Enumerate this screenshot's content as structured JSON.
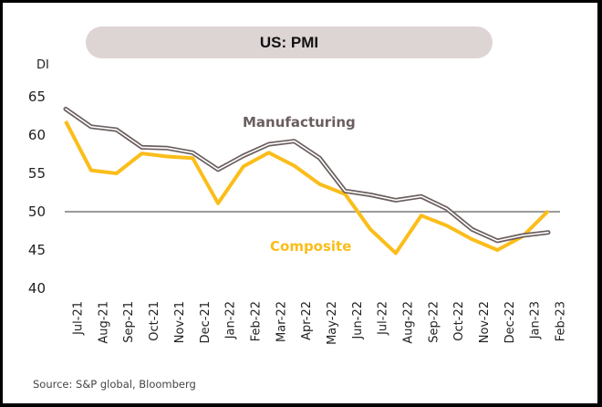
{
  "chart_data": {
    "type": "line",
    "title": "US: PMI",
    "xlabel": "",
    "ylabel": "DI",
    "ylim": [
      40,
      65
    ],
    "yticks": [
      40,
      45,
      50,
      55,
      60,
      65
    ],
    "reference_line": 50,
    "categories": [
      "Jul-21",
      "Aug-21",
      "Sep-21",
      "Oct-21",
      "Nov-21",
      "Dec-21",
      "Jan-22",
      "Feb-22",
      "Mar-22",
      "Apr-22",
      "May-22",
      "Jun-22",
      "Jul-22",
      "Aug-22",
      "Sep-22",
      "Oct-22",
      "Nov-22",
      "Dec-22",
      "Jan-23",
      "Feb-23"
    ],
    "series": [
      {
        "name": "Manufacturing",
        "color": "#6b5e5e",
        "style": "double-outline",
        "values": [
          63.4,
          61.1,
          60.7,
          58.4,
          58.3,
          57.7,
          55.5,
          57.3,
          58.8,
          59.2,
          57.0,
          52.7,
          52.2,
          51.5,
          52.0,
          50.4,
          47.7,
          46.2,
          46.9,
          47.3
        ]
      },
      {
        "name": "Composite",
        "color": "#fbbd1a",
        "style": "solid",
        "values": [
          61.8,
          55.4,
          55.0,
          57.6,
          57.2,
          57.0,
          51.1,
          55.9,
          57.7,
          56.0,
          53.6,
          52.3,
          47.7,
          44.6,
          49.5,
          48.2,
          46.4,
          45.0,
          46.8,
          50.1
        ]
      }
    ],
    "grid": false,
    "legend": "inline-labels"
  },
  "labels": {
    "manufacturing": "Manufacturing",
    "composite": "Composite"
  },
  "source": "Source: S&P global, Bloomberg"
}
